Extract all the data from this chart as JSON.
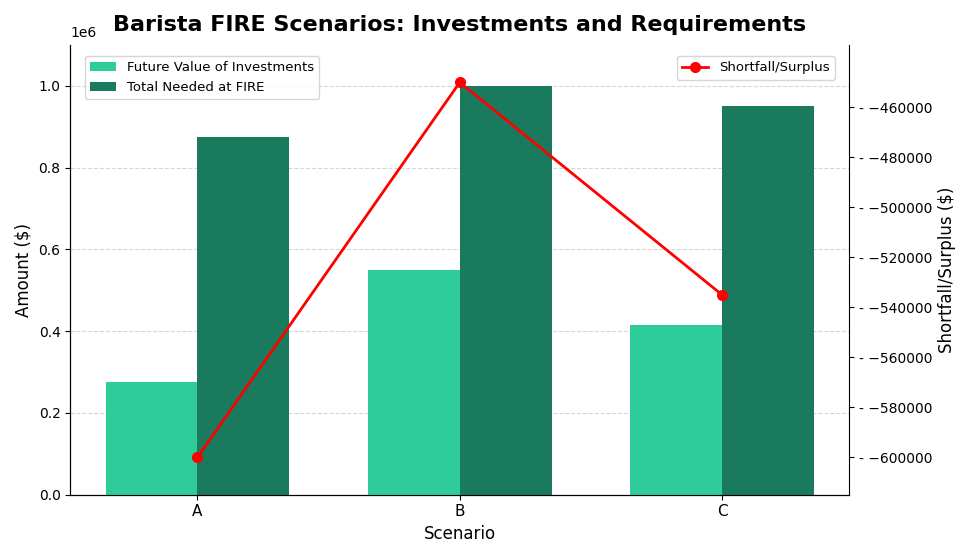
{
  "scenarios": [
    "A",
    "B",
    "C"
  ],
  "future_value": [
    275000,
    550000,
    415000
  ],
  "total_needed": [
    875000,
    1000000,
    950000
  ],
  "shortfall": [
    -600000,
    -450000,
    -535000
  ],
  "future_value_color": "#2ecc9a",
  "total_needed_color": "#1a7a5e",
  "shortfall_color": "red",
  "title": "Barista FIRE Scenarios: Investments and Requirements",
  "xlabel": "Scenario",
  "ylabel_left": "Amount ($)",
  "ylabel_right": "Shortfall/Surplus ($)",
  "ylim_left": [
    0,
    1100000
  ],
  "ylim_right": [
    -615000,
    -435000
  ],
  "legend_future": "Future Value of Investments",
  "legend_needed": "Total Needed at FIRE",
  "legend_shortfall": "Shortfall/Surplus",
  "bar_width": 0.35,
  "background_color": "#ffffff",
  "grid_color": "#cccccc",
  "title_fontsize": 16,
  "label_fontsize": 12,
  "tick_fontsize": 11
}
